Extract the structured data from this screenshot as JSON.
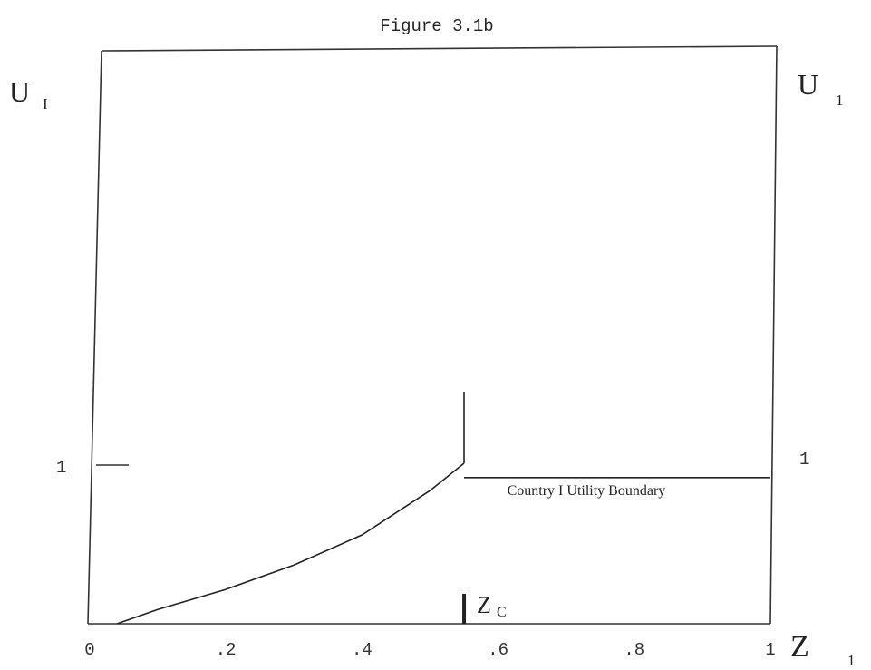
{
  "chart_data": {
    "type": "line",
    "title": "Figure 3.1b",
    "y_label_left": {
      "main": "U",
      "sub": "I"
    },
    "y_label_right": {
      "main": "U",
      "sub": "1"
    },
    "x_label": {
      "main": "Z",
      "sub": "1"
    },
    "x_ticks": [
      "0",
      ".2",
      ".4",
      ".6",
      ".8",
      "1"
    ],
    "x_tick_values": [
      0,
      0.2,
      0.4,
      0.6,
      0.8,
      1
    ],
    "y_tick_left": {
      "label": "1",
      "value": 1
    },
    "y_tick_right": {
      "label": "1",
      "value": 1
    },
    "xlim": [
      0,
      1
    ],
    "ylim": [
      0,
      4
    ],
    "zc": {
      "x": 0.55,
      "label_main": "Z",
      "label_sub": "C"
    },
    "series": [
      {
        "name": "Country I Utility Boundary",
        "segments": [
          [
            [
              0.04,
              0.0
            ],
            [
              0.1,
              0.1
            ],
            [
              0.2,
              0.24
            ],
            [
              0.3,
              0.41
            ],
            [
              0.4,
              0.62
            ],
            [
              0.5,
              0.93
            ],
            [
              0.55,
              1.12
            ]
          ],
          [
            [
              0.55,
              1.12
            ],
            [
              0.55,
              1.62
            ]
          ],
          [
            [
              0.55,
              1.02
            ],
            [
              1.0,
              1.02
            ]
          ]
        ]
      }
    ],
    "annotations": [
      {
        "text": "Country I Utility Boundary",
        "x": 0.62,
        "y": 0.9
      }
    ],
    "grid": false
  }
}
